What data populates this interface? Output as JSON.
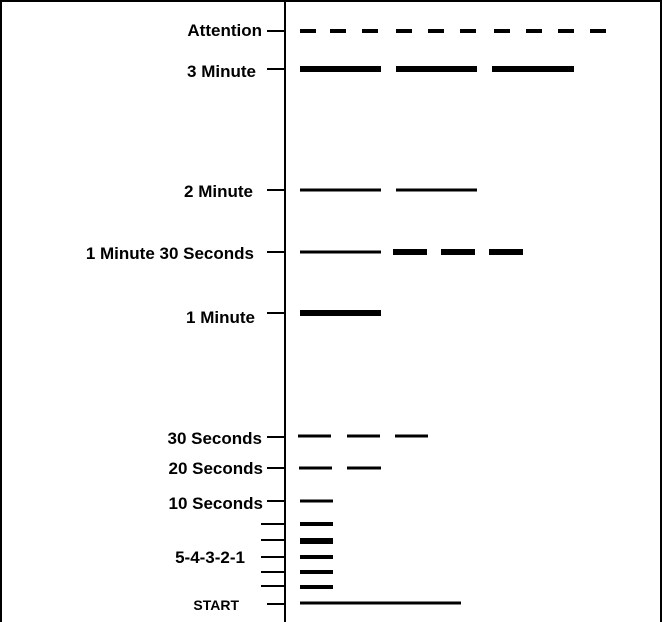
{
  "signals": [
    {
      "key": "attention",
      "label": "Attention",
      "pattern": "attention-dashes"
    },
    {
      "key": "three-minute",
      "label": "3 Minute",
      "pattern": "three-long"
    },
    {
      "key": "two-minute",
      "label": "2 Minute",
      "pattern": "two-long"
    },
    {
      "key": "one-minute-thirty",
      "label": "1 Minute 30 Seconds",
      "pattern": "long-plus-three-short"
    },
    {
      "key": "one-minute",
      "label": "1 Minute",
      "pattern": "one-long"
    },
    {
      "key": "thirty-seconds",
      "label": "30 Seconds",
      "pattern": "three-short"
    },
    {
      "key": "twenty-seconds",
      "label": "20 Seconds",
      "pattern": "two-short"
    },
    {
      "key": "ten-seconds",
      "label": "10 Seconds",
      "pattern": "one-short"
    },
    {
      "key": "countdown",
      "label": "5-4-3-2-1",
      "pattern": "five-short"
    },
    {
      "key": "start",
      "label": "START",
      "pattern": "one-extra-long"
    }
  ],
  "colors": {
    "line": "#000000",
    "background": "#ffffff"
  }
}
